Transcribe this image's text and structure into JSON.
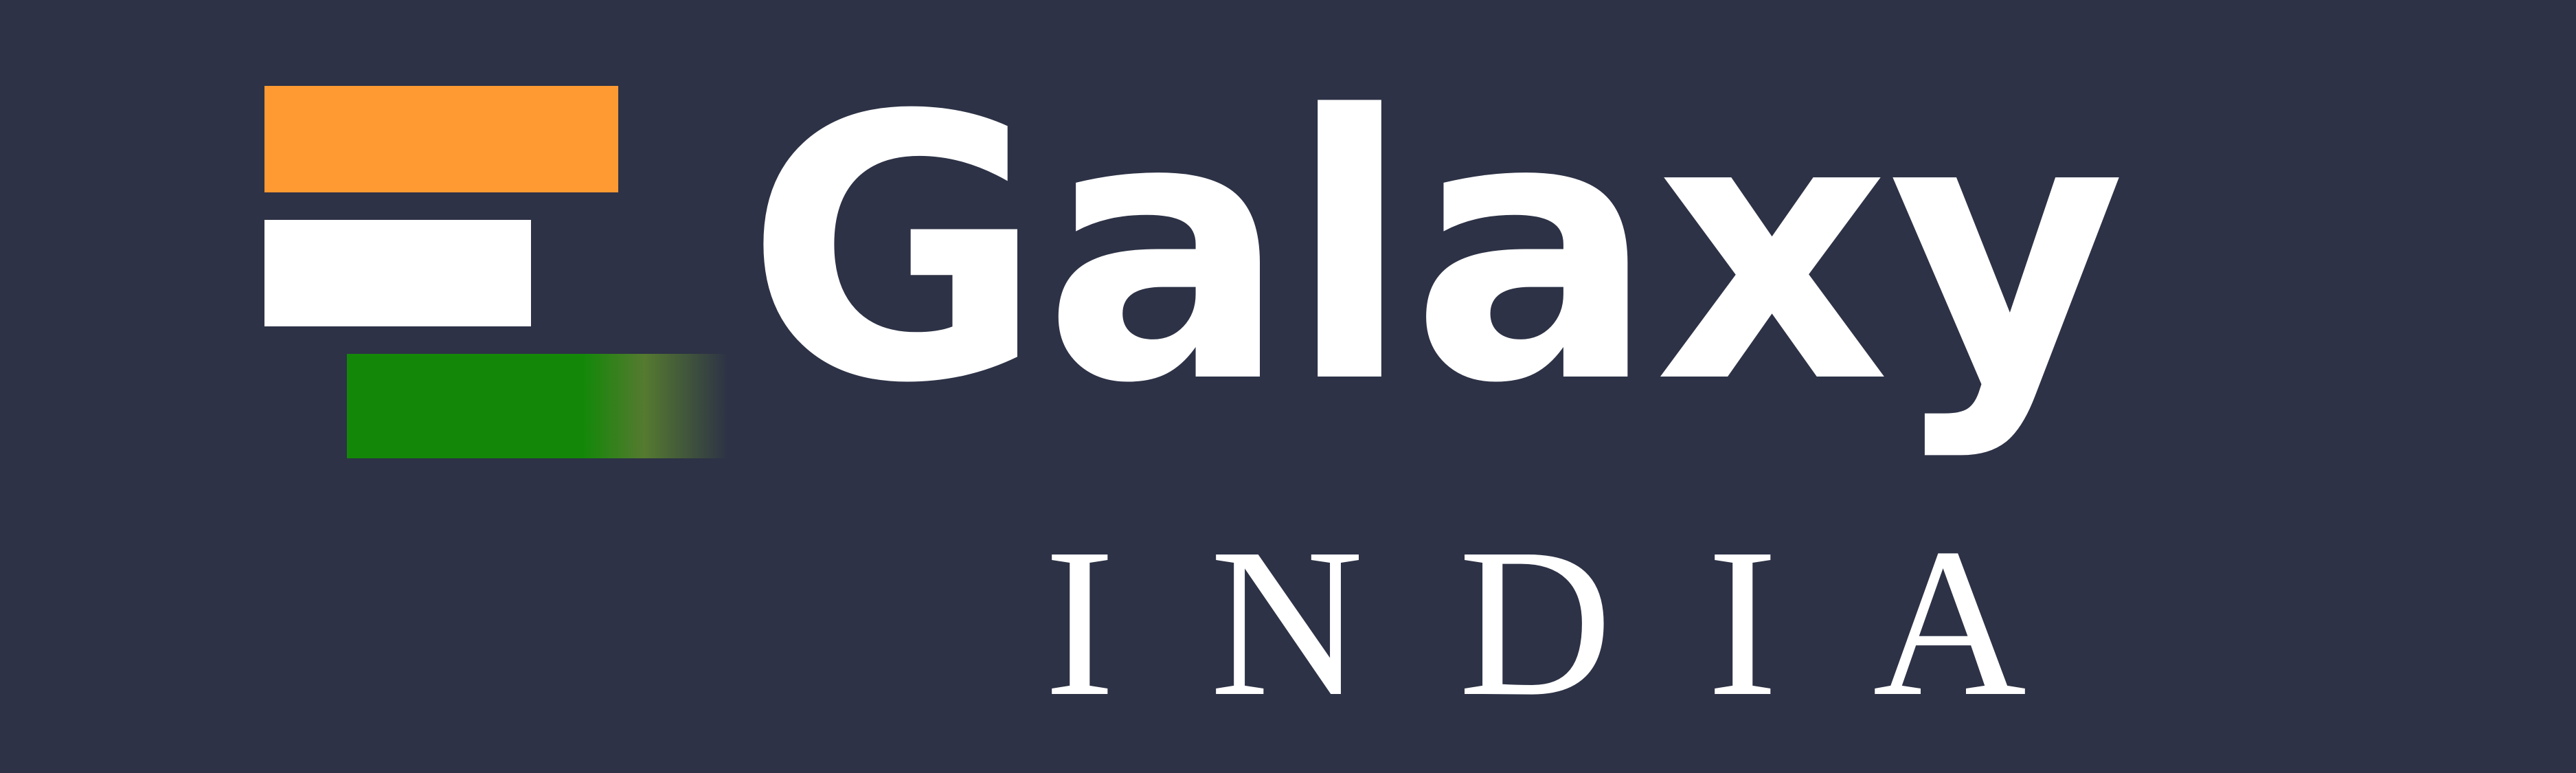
{
  "logo": {
    "title": "Galaxy",
    "subtitle": "INDIA",
    "colors": {
      "background": "#2d3246",
      "orange_bar": "#ff9a33",
      "white_bar": "#ffffff",
      "green_bar": "#138808",
      "text": "#ffffff"
    }
  }
}
